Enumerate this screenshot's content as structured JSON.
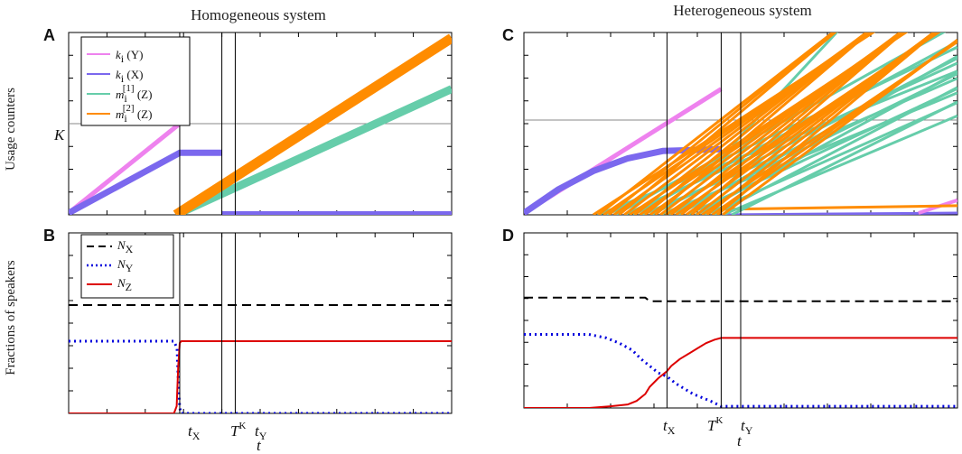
{
  "columns": {
    "left_title": "Homogeneous system",
    "right_title": "Heterogeneous system"
  },
  "y_labels": {
    "top": "Usage counters",
    "bottom": "Fractions of speakers"
  },
  "chart_data": [
    {
      "panel": "A",
      "type": "line",
      "title": "",
      "ylabel": "Usage counters",
      "xlim": [
        0,
        100
      ],
      "ylim": [
        0,
        100
      ],
      "yticks_labeled": [
        {
          "value": 50,
          "label": "K"
        }
      ],
      "vlines": [
        {
          "x": 29,
          "label": "tX"
        },
        {
          "x": 40,
          "label": "TK"
        },
        {
          "x": 43.5,
          "label": "tY"
        }
      ],
      "hlines": [
        {
          "y": 50,
          "label": "K"
        }
      ],
      "legend_position": "top-left",
      "legend": [
        "k_i (Y)",
        "k_i (X)",
        "m_i^[1] (Z)",
        "m_i^[2] (Z)"
      ],
      "series": [
        {
          "name": "k_i (Y)",
          "color": "#ee82ee",
          "width": 5,
          "points": [
            [
              0,
              1
            ],
            [
              29,
              50
            ]
          ]
        },
        {
          "name": "k_i (X)",
          "color": "#7b68ee",
          "width": 7,
          "points": [
            [
              0,
              1
            ],
            [
              29,
              34
            ],
            [
              40,
              34
            ]
          ]
        },
        {
          "name": "k_i (X) after reset",
          "color": "#7b68ee",
          "width": 4,
          "points": [
            [
              40,
              1
            ],
            [
              100,
              1
            ]
          ]
        },
        {
          "name": "m_i^[1] (Z)",
          "color": "#66cdaa",
          "width": 9,
          "points": [
            [
              28,
              0
            ],
            [
              100,
              69
            ]
          ]
        },
        {
          "name": "m_i^[2] (Z)",
          "color": "#ff8c00",
          "width": 11,
          "points": [
            [
              28,
              0
            ],
            [
              100,
              97
            ]
          ]
        }
      ]
    },
    {
      "panel": "B",
      "type": "line",
      "title": "",
      "ylabel": "Fractions of speakers",
      "xlabel": "t",
      "xlim": [
        0,
        100
      ],
      "ylim": [
        0,
        100
      ],
      "xticks": [
        "tX",
        "TK",
        "tY"
      ],
      "vlines": [
        {
          "x": 29,
          "label": "tX"
        },
        {
          "x": 40,
          "label": "TK"
        },
        {
          "x": 43.5,
          "label": "tY"
        }
      ],
      "legend_position": "top-left",
      "legend": [
        "N_X",
        "N_Y",
        "N_Z"
      ],
      "series": [
        {
          "name": "N_X",
          "color": "#000000",
          "dash": "10,6",
          "points": [
            [
              0,
              60
            ],
            [
              100,
              60
            ]
          ]
        },
        {
          "name": "N_Y",
          "color": "#0000dd",
          "dash": "2,4",
          "points": [
            [
              0,
              40
            ],
            [
              27.5,
              40
            ],
            [
              28.3,
              36
            ],
            [
              28.7,
              14
            ],
            [
              29,
              3
            ],
            [
              29.4,
              0
            ],
            [
              100,
              0
            ]
          ]
        },
        {
          "name": "N_Z",
          "color": "#dd0000",
          "dash": "",
          "points": [
            [
              0,
              0
            ],
            [
              27.5,
              0
            ],
            [
              28.2,
              4
            ],
            [
              28.6,
              26
            ],
            [
              29,
              39
            ],
            [
              29.4,
              40
            ],
            [
              100,
              40
            ]
          ]
        }
      ]
    },
    {
      "panel": "C",
      "type": "line",
      "title": "",
      "xlim": [
        0,
        100
      ],
      "ylim": [
        0,
        100
      ],
      "vlines": [
        {
          "x": 33,
          "label": "tX"
        },
        {
          "x": 45.5,
          "label": "TK"
        },
        {
          "x": 50,
          "label": "tY"
        }
      ],
      "hlines": [
        {
          "y": 52,
          "label": "K"
        }
      ],
      "series": [
        {
          "name": "k_i (Y)",
          "color": "#ee82ee",
          "width": 5,
          "points": [
            [
              0,
              1
            ],
            [
              45.5,
              69
            ]
          ]
        },
        {
          "name": "k_i (X)",
          "color": "#7b68ee",
          "width": 7,
          "points": [
            [
              0,
              1
            ],
            [
              8,
              14
            ],
            [
              16,
              24
            ],
            [
              24,
              31
            ],
            [
              32,
              35
            ],
            [
              45.5,
              36
            ]
          ]
        },
        {
          "name": "k_i (X) after reset",
          "color": "#7b68ee",
          "width": 3,
          "points": [
            [
              45.5,
              0
            ],
            [
              100,
              1
            ]
          ]
        },
        {
          "name": "k_i (Y) late",
          "color": "#ee82ee",
          "width": 4,
          "points": [
            [
              91,
              1
            ],
            [
              100,
              8
            ]
          ]
        },
        {
          "name": "m_i^[1] (Z) fast",
          "color": "#66cdaa",
          "width": 3,
          "points": [
            [
              48,
              38
            ],
            [
              76,
              110
            ]
          ]
        },
        {
          "name": "m_i^[2] (Z) slow",
          "color": "#ff8c00",
          "width": 3,
          "points": [
            [
              46,
              3
            ],
            [
              100,
              5
            ]
          ]
        },
        {
          "name": "m_i^[1] (Z) bundle",
          "color": "#66cdaa",
          "width": 3,
          "bundle": {
            "x0_from": 17,
            "x0_to": 50,
            "count": 16,
            "slope_from": 0.95,
            "slope_to": 1.35
          }
        },
        {
          "name": "m_i^[2] (Z) bundle",
          "color": "#ff8c00",
          "width": 3,
          "bundle": {
            "x0_from": 16,
            "x0_to": 47,
            "count": 26,
            "slope_from": 1.55,
            "slope_to": 2.05
          }
        }
      ]
    },
    {
      "panel": "D",
      "type": "line",
      "title": "",
      "xlabel": "t",
      "xlim": [
        0,
        100
      ],
      "ylim": [
        0,
        100
      ],
      "xticks": [
        "tX",
        "TK",
        "tY"
      ],
      "vlines": [
        {
          "x": 33,
          "label": "tX"
        },
        {
          "x": 45.5,
          "label": "TK"
        },
        {
          "x": 50,
          "label": "tY"
        }
      ],
      "series": [
        {
          "name": "N_X",
          "color": "#000000",
          "dash": "10,6",
          "points": [
            [
              0,
              63
            ],
            [
              28,
              63
            ],
            [
              29,
              61
            ],
            [
              100,
              61
            ]
          ]
        },
        {
          "name": "N_Y",
          "color": "#0000dd",
          "dash": "2,4",
          "points": [
            [
              0,
              42
            ],
            [
              15,
              42
            ],
            [
              19,
              40
            ],
            [
              22,
              37
            ],
            [
              25,
              33
            ],
            [
              27,
              28
            ],
            [
              29,
              24
            ],
            [
              31,
              20
            ],
            [
              33,
              18
            ],
            [
              35,
              14
            ],
            [
              37,
              11
            ],
            [
              39,
              8
            ],
            [
              41,
              6
            ],
            [
              43,
              4
            ],
            [
              45.5,
              1
            ],
            [
              100,
              1
            ]
          ]
        },
        {
          "name": "N_Z",
          "color": "#dd0000",
          "dash": "",
          "points": [
            [
              0,
              0
            ],
            [
              15,
              0
            ],
            [
              20,
              1
            ],
            [
              24,
              2
            ],
            [
              26,
              4
            ],
            [
              28,
              8
            ],
            [
              29,
              12
            ],
            [
              31,
              17
            ],
            [
              33,
              21
            ],
            [
              34,
              24
            ],
            [
              36,
              28
            ],
            [
              38,
              31
            ],
            [
              40,
              34
            ],
            [
              42,
              37
            ],
            [
              44,
              39
            ],
            [
              45.5,
              40
            ],
            [
              100,
              40
            ]
          ]
        }
      ]
    }
  ],
  "labels": {
    "panel_A": "A",
    "panel_B": "B",
    "panel_C": "C",
    "panel_D": "D",
    "K": "K",
    "t": "t",
    "T": "T",
    "tX_sub": "X",
    "TK_sup": "K",
    "tY_sub": "Y",
    "legend_top": [
      {
        "base": "k",
        "sub": "i",
        "tail": " (Y)"
      },
      {
        "base": "k",
        "sub": "i",
        "tail": " (X)"
      },
      {
        "base": "m",
        "sub": "i",
        "sup": "[1]",
        "tail": " (Z)"
      },
      {
        "base": "m",
        "sub": "i",
        "sup": "[2]",
        "tail": " (Z)"
      }
    ],
    "legend_bottom": [
      {
        "base": "N",
        "sub": "X"
      },
      {
        "base": "N",
        "sub": "Y"
      },
      {
        "base": "N",
        "sub": "Z"
      }
    ]
  },
  "colors": {
    "ki_Y": "#ee82ee",
    "ki_X": "#7b68ee",
    "mi1_Z": "#66cdaa",
    "mi2_Z": "#ff8c00",
    "N_X": "#000000",
    "N_Y": "#0000dd",
    "N_Z": "#dd0000",
    "frame": "#000000",
    "refline": "#888888"
  }
}
